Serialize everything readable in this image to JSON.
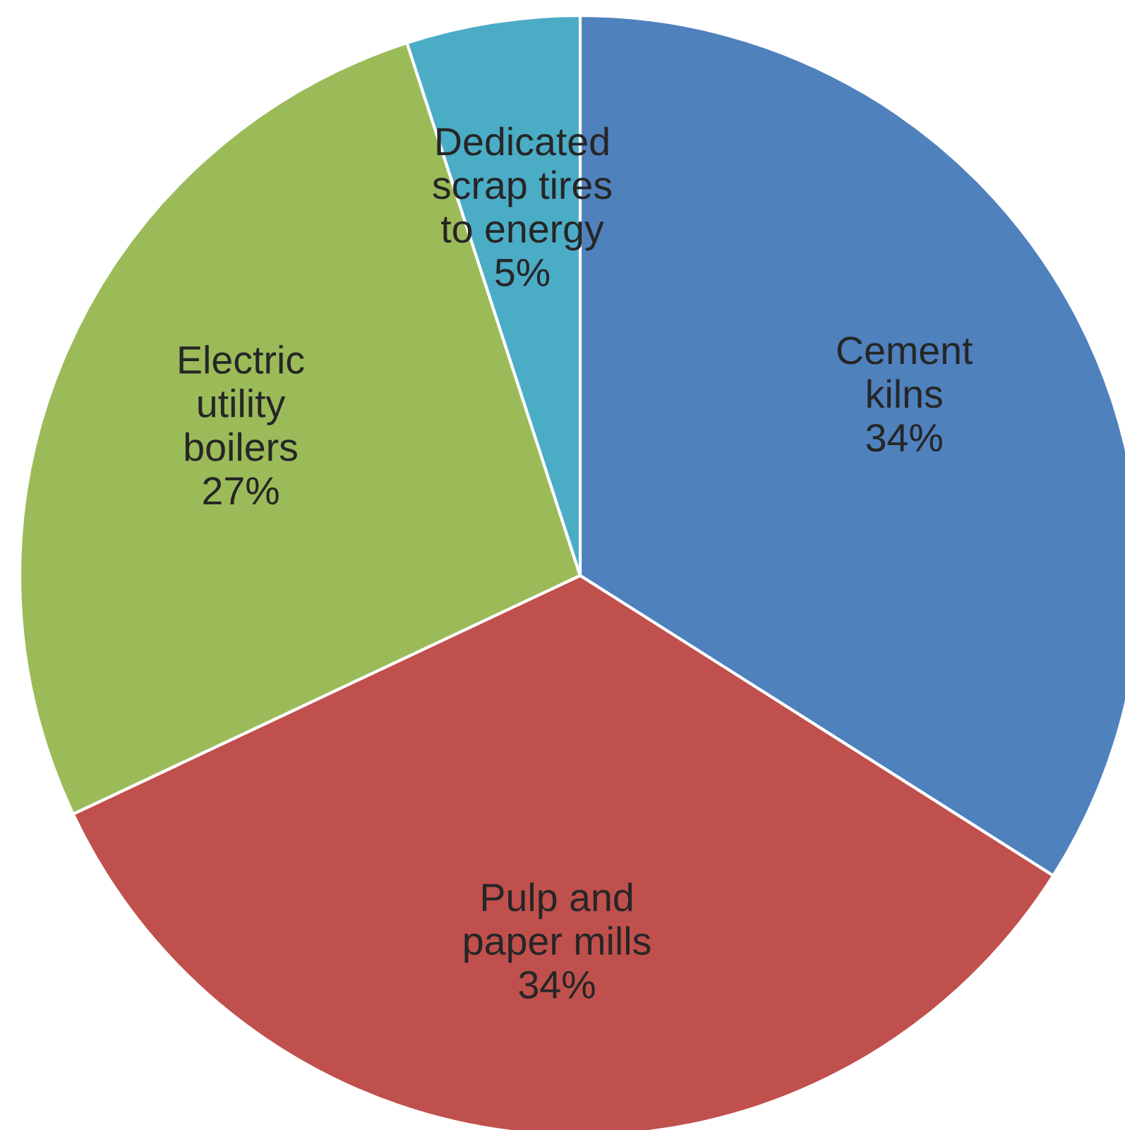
{
  "chart_data": {
    "type": "pie",
    "categories": [
      "Cement\nkilns",
      "Pulp and\npaper mills",
      "Electric\nutility\nboilers",
      "Dedicated\nscrap tires\nto energy"
    ],
    "values": [
      34,
      34,
      27,
      5
    ],
    "value_labels": [
      "34%",
      "34%",
      "27%",
      "5%"
    ],
    "colors": [
      "#4f81bd",
      "#c0504d",
      "#9bbb59",
      "#4bacc6"
    ]
  }
}
